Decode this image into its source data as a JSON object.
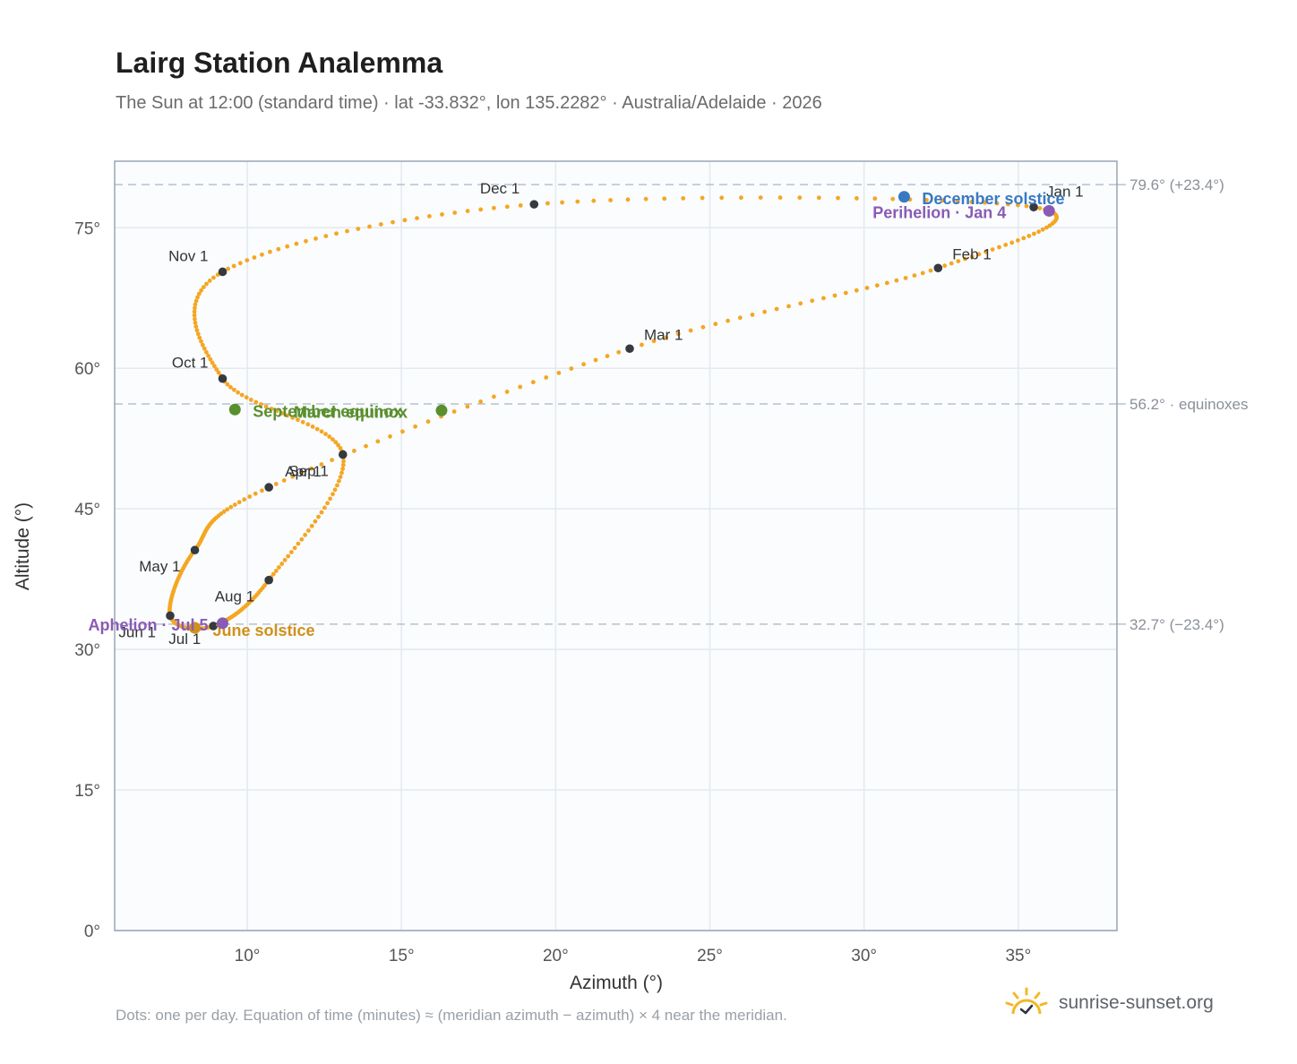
{
  "title": "Lairg Station Analemma",
  "subtitle": "The Sun at 12:00 (standard time) · lat -33.832°, lon 135.2282° · Australia/Adelaide · 2026",
  "footnote": "Dots: one per day. Equation of time (minutes) ≈ (meridian azimuth − azimuth) × 4 near the meridian.",
  "brand": "sunrise-sunset.org",
  "colors": {
    "path": "#f5a623",
    "month_dot": "#343a40",
    "equinox": "#5a8f2e",
    "june_solstice": "#d1901a",
    "december_solstice": "#3a78c2",
    "apsis": "#8a5bb5",
    "plot_bg": "#fafcfe",
    "grid": "#e4e9ef",
    "frame": "#9aa5b5",
    "refline": "#b5c2cf"
  },
  "chart_data": {
    "type": "scatter",
    "title": "Lairg Station Analemma",
    "xlabel": "Azimuth (°)",
    "ylabel": "Altitude (°)",
    "xlim": [
      5.7,
      38.2
    ],
    "ylim": [
      0,
      82.1
    ],
    "xticks": [
      10,
      15,
      20,
      25,
      30,
      35
    ],
    "xtick_labels": [
      "10°",
      "15°",
      "20°",
      "25°",
      "30°",
      "35°"
    ],
    "yticks": [
      0,
      15,
      30,
      45,
      60,
      75
    ],
    "ytick_labels": [
      "0°",
      "15°",
      "30°",
      "45°",
      "60°",
      "75°"
    ],
    "grid": true,
    "reference_lines": [
      {
        "y": 79.6,
        "label": "79.6° (+23.4°)"
      },
      {
        "y": 56.2,
        "label": "56.2° · equinoxes"
      },
      {
        "y": 32.7,
        "label": "32.7° (−23.4°)"
      }
    ],
    "monthly": [
      {
        "label": "Jan 1",
        "az": 35.5,
        "alt": 77.2
      },
      {
        "label": "Feb 1",
        "az": 32.4,
        "alt": 70.7
      },
      {
        "label": "Mar 1",
        "az": 22.4,
        "alt": 62.1
      },
      {
        "label": "Apr 1",
        "az": 10.7,
        "alt": 47.3
      },
      {
        "label": "May 1",
        "az": 8.3,
        "alt": 40.6
      },
      {
        "label": "Jun 1",
        "az": 7.5,
        "alt": 33.6
      },
      {
        "label": "Jul 1",
        "az": 8.9,
        "alt": 32.5
      },
      {
        "label": "Aug 1",
        "az": 10.7,
        "alt": 37.4
      },
      {
        "label": "Sep 1",
        "az": 13.1,
        "alt": 50.8
      },
      {
        "label": "Oct 1",
        "az": 9.2,
        "alt": 58.9
      },
      {
        "label": "Nov 1",
        "az": 9.2,
        "alt": 70.3
      },
      {
        "label": "Dec 1",
        "az": 19.3,
        "alt": 77.5
      }
    ],
    "events": [
      {
        "label": "March equinox",
        "az": 16.3,
        "alt": 55.5,
        "color_key": "equinox"
      },
      {
        "label": "September equinox",
        "az": 9.6,
        "alt": 55.6,
        "color_key": "equinox"
      },
      {
        "label": "June solstice",
        "az": 8.3,
        "alt": 32.3,
        "color_key": "june_solstice"
      },
      {
        "label": "December solstice",
        "az": 31.3,
        "alt": 78.3,
        "color_key": "december_solstice"
      },
      {
        "label": "Perihelion · Jan 4",
        "az": 36.0,
        "alt": 76.8,
        "color_key": "apsis"
      },
      {
        "label": "Aphelion · Jul 5",
        "az": 9.2,
        "alt": 32.8,
        "color_key": "apsis"
      }
    ]
  }
}
